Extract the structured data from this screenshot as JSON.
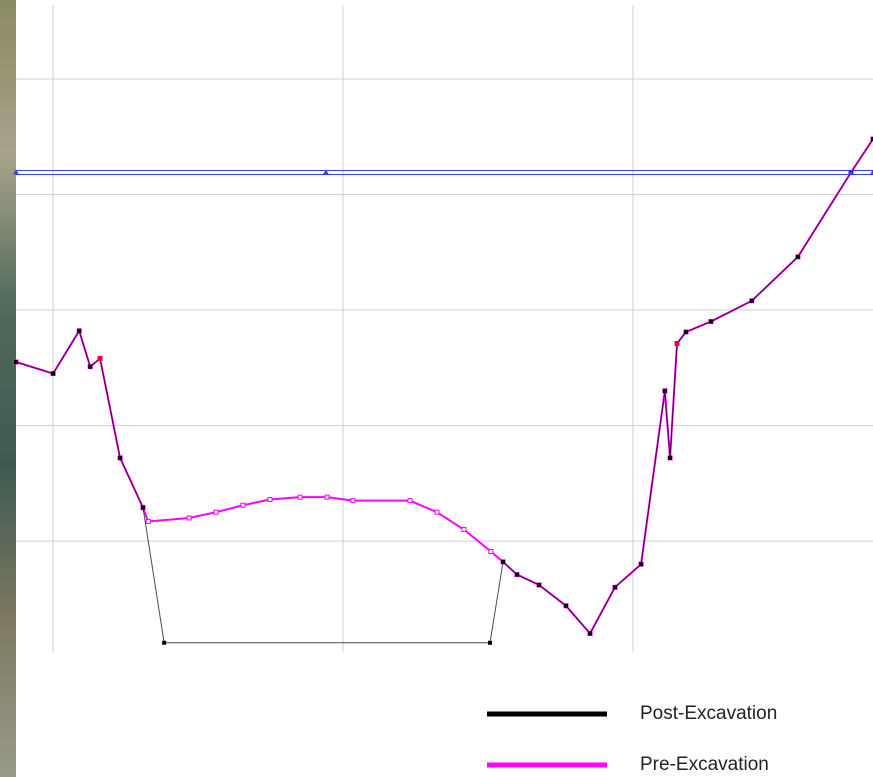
{
  "chart_data": {
    "type": "line",
    "xlim": [
      -1.28,
      28.28
    ],
    "ylim": [
      0.04,
      5.64
    ],
    "xticks": [
      0,
      10,
      20
    ],
    "yticks": [
      1,
      2,
      3,
      4,
      5
    ],
    "grid": true,
    "series": [
      {
        "name": "Post-Excavation",
        "color": "#000000",
        "marker": "square",
        "x": [
          -1.28,
          0,
          0.9,
          1.28,
          1.62,
          2.31,
          3.1,
          3.83,
          15.07,
          15.52,
          16.0,
          16.76,
          17.69,
          18.52,
          19.38,
          20.28,
          21.1,
          21.28,
          21.52,
          21.83,
          22.69,
          24.1,
          25.69,
          27.52,
          28.28
        ],
        "values": [
          2.55,
          2.45,
          2.82,
          2.51,
          2.58,
          1.72,
          1.29,
          0.12,
          0.12,
          0.82,
          0.71,
          0.62,
          0.44,
          0.2,
          0.6,
          0.8,
          2.3,
          1.72,
          2.71,
          2.81,
          2.9,
          3.08,
          3.46,
          4.19,
          4.48
        ]
      },
      {
        "name": "Pre-Excavation",
        "color": "#ff00ff",
        "marker": "hollow-square",
        "x": [
          -1.28,
          0,
          0.9,
          1.28,
          1.62,
          2.31,
          3.1,
          3.28,
          4.69,
          5.62,
          6.55,
          7.48,
          8.52,
          9.45,
          10.34,
          12.31,
          13.24,
          14.17,
          15.1,
          15.52,
          16.0,
          16.76,
          17.69,
          18.52,
          19.38,
          20.28,
          21.1,
          21.28,
          21.52,
          21.83,
          22.69,
          24.1,
          25.69,
          27.52,
          28.28
        ],
        "values": [
          2.55,
          2.45,
          2.82,
          2.51,
          2.58,
          1.72,
          1.29,
          1.17,
          1.2,
          1.25,
          1.31,
          1.36,
          1.38,
          1.38,
          1.35,
          1.35,
          1.25,
          1.1,
          0.91,
          0.82,
          0.71,
          0.62,
          0.44,
          0.2,
          0.6,
          0.8,
          2.3,
          1.72,
          2.71,
          2.81,
          2.9,
          3.08,
          3.46,
          4.19,
          4.48
        ]
      },
      {
        "color": "#3a3aff",
        "marker": "triangle",
        "style": "double",
        "x": [
          -1.28,
          9.41,
          27.52,
          28.28
        ],
        "values": [
          4.19,
          4.19,
          4.19,
          4.19
        ]
      },
      {
        "color": "#ff0000",
        "marker": "circle",
        "style": "points",
        "x": [
          1.62,
          21.52
        ],
        "values": [
          2.58,
          2.71
        ]
      }
    ]
  }
}
